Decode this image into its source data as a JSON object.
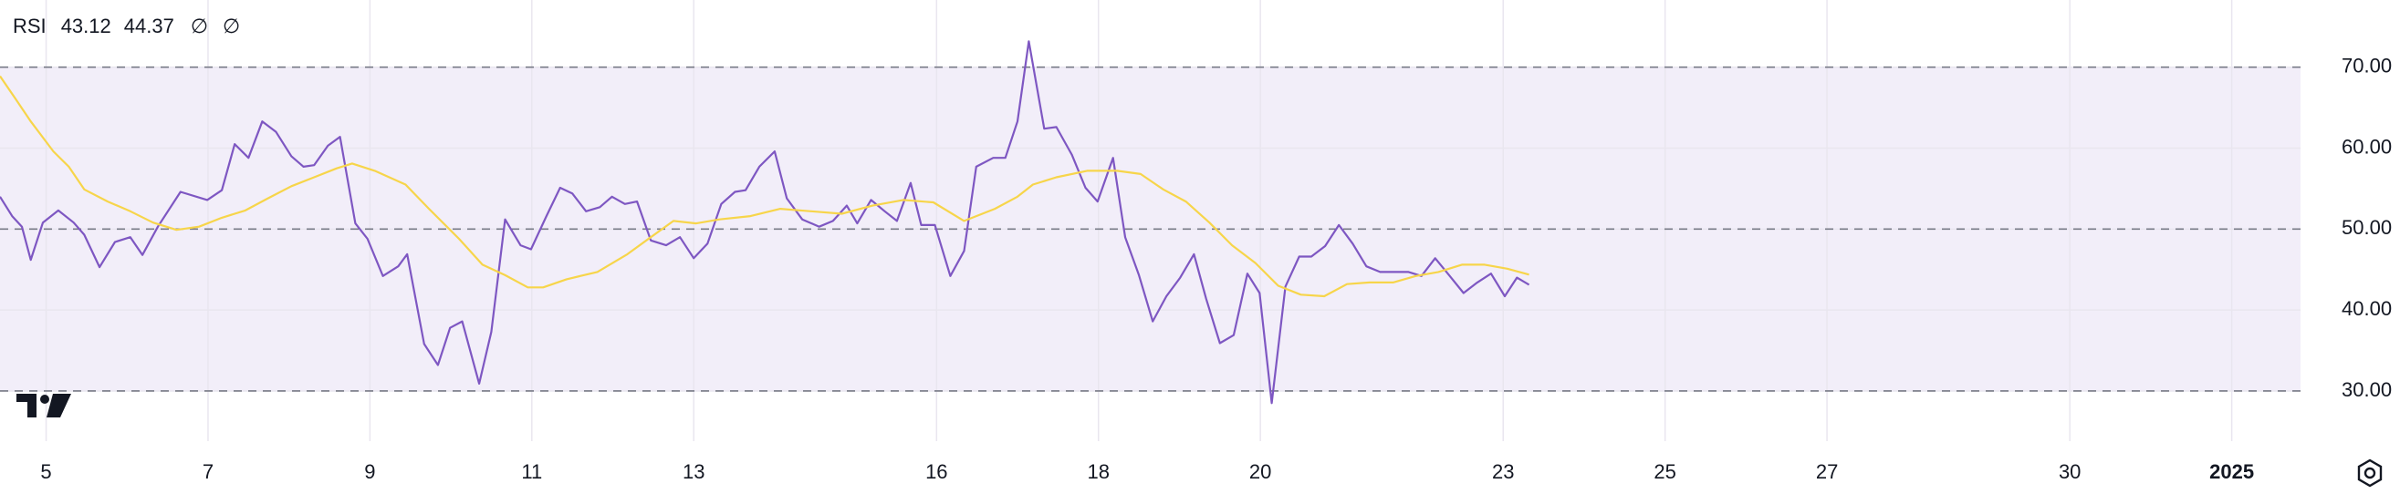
{
  "chart_data": {
    "type": "line",
    "title": "RSI",
    "status_icons": [
      "∅",
      "∅"
    ],
    "xlim": [
      4.43,
      32.85
    ],
    "xticks": [
      5,
      7,
      9,
      11,
      13,
      16,
      18,
      20,
      23,
      25,
      27,
      30,
      {
        "value": 32,
        "label": "2025"
      }
    ],
    "ylim": [
      23.8,
      78.3
    ],
    "yticks": [
      {
        "value": 70,
        "label": "70.00"
      },
      {
        "value": 60,
        "label": "60.00"
      },
      {
        "value": 50,
        "label": "50.00"
      },
      {
        "value": 40,
        "label": "40.00"
      },
      {
        "value": 30,
        "label": "30.00"
      }
    ],
    "bands": {
      "upper": 70,
      "middle": 50,
      "lower": 30,
      "color": "#7e57c2"
    },
    "grid": true,
    "series": [
      {
        "color": "#7e57c2",
        "x": [
          4.43,
          4.58,
          4.7,
          4.81,
          4.96,
          5.15,
          5.34,
          5.47,
          5.66,
          5.85,
          6.04,
          6.19,
          6.38,
          6.66,
          6.99,
          7.17,
          7.33,
          7.5,
          7.67,
          7.84,
          8.03,
          8.18,
          8.31,
          8.48,
          8.63,
          8.82,
          8.97,
          9.16,
          9.35,
          9.46,
          9.67,
          9.84,
          9.99,
          10.14,
          10.35,
          10.5,
          10.67,
          10.86,
          10.99,
          11.18,
          11.35,
          11.5,
          11.67,
          11.84,
          11.99,
          12.15,
          12.3,
          12.47,
          12.66,
          12.83,
          13.0,
          13.17,
          13.34,
          13.51,
          13.64,
          13.81,
          14.0,
          14.15,
          14.34,
          14.55,
          14.72,
          14.89,
          15.02,
          15.19,
          15.36,
          15.51,
          15.68,
          15.81,
          15.98,
          16.17,
          16.34,
          16.49,
          16.7,
          16.85,
          17.0,
          17.14,
          17.33,
          17.48,
          17.67,
          17.84,
          17.99,
          18.18,
          18.33,
          18.5,
          18.67,
          18.84,
          19.01,
          19.18,
          19.33,
          19.5,
          19.67,
          19.84,
          19.99,
          20.14,
          20.31,
          20.48,
          20.63,
          20.8,
          20.97,
          21.14,
          21.31,
          21.48,
          21.66,
          21.83,
          21.99,
          22.16,
          22.34,
          22.51,
          22.68,
          22.85,
          23.02,
          23.17,
          23.32
        ],
        "values": [
          54.0,
          51.6,
          50.3,
          46.2,
          50.8,
          52.3,
          50.8,
          49.3,
          45.3,
          48.4,
          49.0,
          46.8,
          50.3,
          54.6,
          53.6,
          54.8,
          60.5,
          58.8,
          63.3,
          62.0,
          59.0,
          57.7,
          57.9,
          60.3,
          61.4,
          50.7,
          48.8,
          44.2,
          45.4,
          46.9,
          35.8,
          33.2,
          37.8,
          38.6,
          30.9,
          37.3,
          51.2,
          48.0,
          47.5,
          51.6,
          55.1,
          54.4,
          52.2,
          52.7,
          54.0,
          53.1,
          53.4,
          48.6,
          48.0,
          49.0,
          46.4,
          48.2,
          53.1,
          54.6,
          54.8,
          57.7,
          59.6,
          53.8,
          51.2,
          50.3,
          51.0,
          52.9,
          50.7,
          53.6,
          52.2,
          51.0,
          55.7,
          50.5,
          50.5,
          44.2,
          47.3,
          57.7,
          58.8,
          58.8,
          63.3,
          73.2,
          62.4,
          62.6,
          59.2,
          55.1,
          53.4,
          58.8,
          49.0,
          44.3,
          38.6,
          41.7,
          44.0,
          46.9,
          41.4,
          35.9,
          36.9,
          44.5,
          42.1,
          28.5,
          42.9,
          46.6,
          46.6,
          47.9,
          50.5,
          48.2,
          45.4,
          44.7,
          44.7,
          44.7,
          44.2,
          46.4,
          44.2,
          42.1,
          43.4,
          44.5,
          41.7,
          44.0,
          43.12
        ]
      },
      {
        "color": "#f7d54a",
        "x": [
          4.43,
          4.62,
          4.81,
          5.09,
          5.28,
          5.47,
          5.76,
          6.04,
          6.32,
          6.61,
          6.89,
          7.17,
          7.46,
          7.74,
          8.03,
          8.31,
          8.59,
          8.78,
          9.06,
          9.44,
          9.73,
          10.1,
          10.39,
          10.67,
          10.95,
          11.14,
          11.43,
          11.81,
          12.18,
          12.47,
          12.75,
          13.03,
          13.32,
          13.7,
          14.07,
          14.45,
          14.83,
          15.21,
          15.59,
          15.96,
          16.34,
          16.72,
          17.0,
          17.19,
          17.48,
          17.86,
          18.23,
          18.52,
          18.8,
          19.08,
          19.37,
          19.65,
          19.94,
          20.22,
          20.5,
          20.79,
          21.07,
          21.35,
          21.64,
          21.92,
          22.2,
          22.49,
          22.77,
          23.05,
          23.32
        ],
        "values": [
          68.9,
          66.1,
          63.3,
          59.6,
          57.7,
          54.9,
          53.4,
          52.2,
          50.8,
          49.9,
          50.3,
          51.4,
          52.3,
          53.8,
          55.3,
          56.4,
          57.5,
          58.1,
          57.2,
          55.5,
          52.5,
          48.8,
          45.6,
          44.3,
          42.8,
          42.8,
          43.8,
          44.7,
          46.9,
          49.0,
          51.0,
          50.7,
          51.2,
          51.6,
          52.5,
          52.2,
          51.9,
          52.9,
          53.6,
          53.3,
          51.0,
          52.5,
          54.0,
          55.5,
          56.4,
          57.2,
          57.2,
          56.8,
          54.9,
          53.4,
          50.8,
          48.0,
          45.8,
          43.0,
          41.9,
          41.7,
          43.2,
          43.4,
          43.4,
          44.2,
          44.7,
          45.6,
          45.6,
          45.1,
          44.37
        ]
      }
    ]
  }
}
